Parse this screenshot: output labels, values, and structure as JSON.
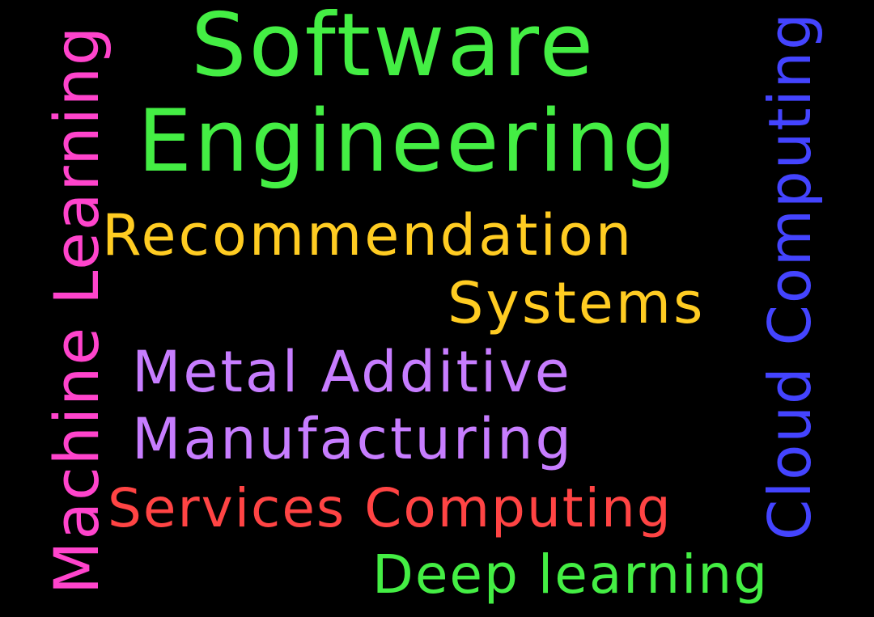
{
  "words": {
    "software": {
      "text": "Software",
      "color": "#44ee44"
    },
    "engineering": {
      "text": "Engineering",
      "color": "#44ee44"
    },
    "recommendation": {
      "text": "Recommendation",
      "color": "#ffcc22"
    },
    "systems": {
      "text": "Systems",
      "color": "#ffcc22"
    },
    "metal_additive": {
      "text": "Metal Additive",
      "color": "#c77dff"
    },
    "manufacturing": {
      "text": "Manufacturing",
      "color": "#c77dff"
    },
    "services_computing": {
      "text": "Services Computing",
      "color": "#ff4444"
    },
    "deep_learning": {
      "text": "Deep learning",
      "color": "#44ee44"
    },
    "machine_learning": {
      "text": "Machine Learning",
      "color": "#ff44cc"
    },
    "cloud_computing": {
      "text": "Cloud Computing",
      "color": "#4444ff"
    }
  },
  "background_color": "#000000"
}
